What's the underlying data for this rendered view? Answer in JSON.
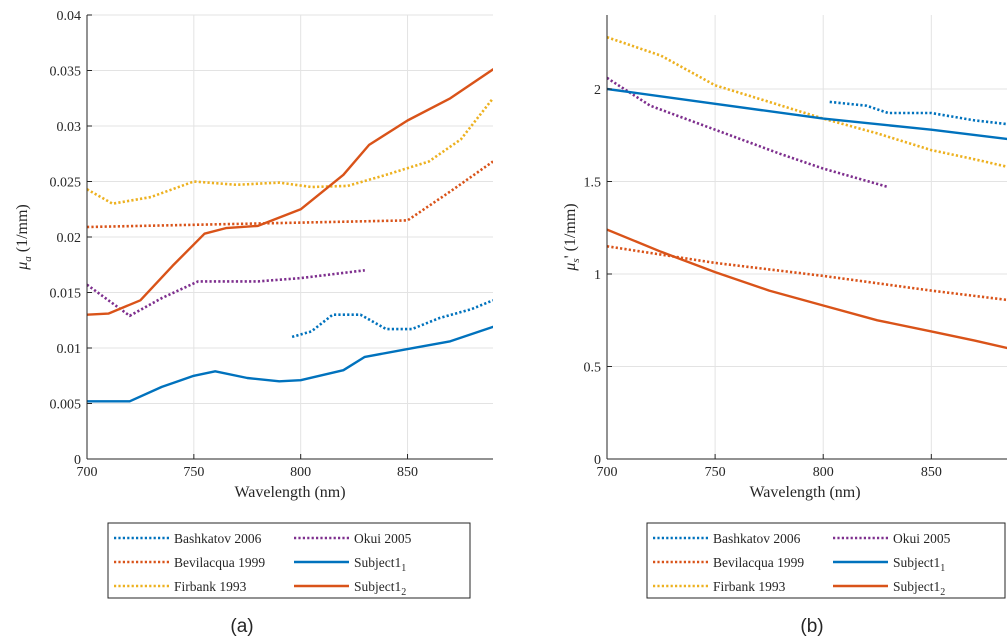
{
  "colors": {
    "blue": "#0072BD",
    "orange": "#D95319",
    "yellow": "#EDB120",
    "purple": "#7E2F8E"
  },
  "legend": {
    "items": [
      {
        "label": "Bashkatov 2006",
        "color": "#0072BD",
        "style": "dotted"
      },
      {
        "label": "Bevilacqua 1999",
        "color": "#D95319",
        "style": "dotted"
      },
      {
        "label": "Firbank 1993",
        "color": "#EDB120",
        "style": "dotted"
      },
      {
        "label": "Okui 2005",
        "color": "#7E2F8E",
        "style": "dotted"
      },
      {
        "label": "Subject1",
        "sub": "1",
        "color": "#0072BD",
        "style": "solid"
      },
      {
        "label": "Subject1",
        "sub": "2",
        "color": "#D95319",
        "style": "solid"
      }
    ]
  },
  "chart_data": [
    {
      "type": "line",
      "panel_label": "(a)",
      "xlabel": "Wavelength (nm)",
      "ylabel_main": "μ",
      "ylabel_sub": "a",
      "ylabel_unit": " (1/mm)",
      "xlim": [
        700,
        890
      ],
      "ylim": [
        0,
        0.04
      ],
      "xticks": [
        700,
        750,
        800,
        850
      ],
      "yticks": [
        0,
        0.005,
        0.01,
        0.015,
        0.02,
        0.025,
        0.03,
        0.035,
        0.04
      ],
      "ytick_labels": [
        "0",
        "0.005",
        "0.01",
        "0.015",
        "0.02",
        "0.025",
        "0.03",
        "0.035",
        "0.04"
      ],
      "grid": true,
      "series": [
        {
          "name": "Bashkatov 2006",
          "color": "#0072BD",
          "style": "dotted",
          "x": [
            796,
            805,
            815,
            828,
            840,
            852,
            865,
            880,
            890
          ],
          "y": [
            0.011,
            0.0115,
            0.013,
            0.013,
            0.0117,
            0.0117,
            0.0127,
            0.0135,
            0.0143
          ]
        },
        {
          "name": "Bevilacqua 1999",
          "color": "#D95319",
          "style": "dotted",
          "x": [
            700,
            750,
            800,
            850,
            870,
            890
          ],
          "y": [
            0.0209,
            0.0211,
            0.0213,
            0.0215,
            0.0241,
            0.0268
          ]
        },
        {
          "name": "Firbank 1993",
          "color": "#EDB120",
          "style": "dotted",
          "x": [
            700,
            712,
            730,
            750,
            770,
            790,
            805,
            822,
            840,
            860,
            875,
            890
          ],
          "y": [
            0.0243,
            0.023,
            0.0236,
            0.025,
            0.0247,
            0.0249,
            0.0245,
            0.0246,
            0.0256,
            0.0268,
            0.0288,
            0.0325
          ]
        },
        {
          "name": "Okui 2005",
          "color": "#7E2F8E",
          "style": "dotted",
          "x": [
            700,
            720,
            735,
            752,
            780,
            800,
            830
          ],
          "y": [
            0.0157,
            0.0129,
            0.0145,
            0.016,
            0.016,
            0.0163,
            0.017
          ]
        },
        {
          "name": "Subject1_1",
          "color": "#0072BD",
          "style": "solid",
          "x": [
            700,
            720,
            735,
            750,
            760,
            775,
            790,
            800,
            820,
            830,
            850,
            870,
            890
          ],
          "y": [
            0.0052,
            0.0052,
            0.0065,
            0.0075,
            0.0079,
            0.0073,
            0.007,
            0.0071,
            0.008,
            0.0092,
            0.0099,
            0.0106,
            0.0119
          ]
        },
        {
          "name": "Subject1_2",
          "color": "#D95319",
          "style": "solid",
          "x": [
            700,
            710,
            725,
            740,
            755,
            765,
            780,
            800,
            820,
            832,
            850,
            870,
            890
          ],
          "y": [
            0.013,
            0.0131,
            0.0143,
            0.0174,
            0.0203,
            0.0208,
            0.021,
            0.0225,
            0.0256,
            0.0283,
            0.0305,
            0.0325,
            0.0351
          ]
        }
      ]
    },
    {
      "type": "line",
      "panel_label": "(b)",
      "xlabel": "Wavelength (nm)",
      "ylabel_main": "μ",
      "ylabel_sub": "s",
      "ylabel_unit": "' (1/mm)",
      "xlim": [
        700,
        885
      ],
      "ylim": [
        0,
        2.4
      ],
      "xticks": [
        700,
        750,
        800,
        850
      ],
      "yticks": [
        0,
        0.5,
        1,
        1.5,
        2
      ],
      "ytick_labels": [
        "0",
        "0.5",
        "1",
        "1.5",
        "2"
      ],
      "grid": true,
      "series": [
        {
          "name": "Bashkatov 2006",
          "color": "#0072BD",
          "style": "dotted",
          "x": [
            803,
            820,
            830,
            850,
            870,
            885
          ],
          "y": [
            1.93,
            1.91,
            1.87,
            1.87,
            1.83,
            1.81
          ]
        },
        {
          "name": "Bevilacqua 1999",
          "color": "#D95319",
          "style": "dotted",
          "x": [
            700,
            750,
            800,
            850,
            885
          ],
          "y": [
            1.15,
            1.06,
            0.99,
            0.91,
            0.86
          ]
        },
        {
          "name": "Firbank 1993",
          "color": "#EDB120",
          "style": "dotted",
          "x": [
            700,
            725,
            750,
            775,
            800,
            825,
            850,
            870,
            885
          ],
          "y": [
            2.28,
            2.18,
            2.02,
            1.93,
            1.84,
            1.76,
            1.67,
            1.62,
            1.58
          ]
        },
        {
          "name": "Okui 2005",
          "color": "#7E2F8E",
          "style": "dotted",
          "x": [
            700,
            720,
            750,
            780,
            800,
            830
          ],
          "y": [
            2.06,
            1.91,
            1.78,
            1.65,
            1.57,
            1.47
          ]
        },
        {
          "name": "Subject1_1",
          "color": "#0072BD",
          "style": "solid",
          "x": [
            700,
            750,
            800,
            850,
            885
          ],
          "y": [
            2.0,
            1.92,
            1.84,
            1.78,
            1.73
          ]
        },
        {
          "name": "Subject1_2",
          "color": "#D95319",
          "style": "solid",
          "x": [
            700,
            725,
            750,
            775,
            800,
            825,
            850,
            870,
            885
          ],
          "y": [
            1.24,
            1.12,
            1.01,
            0.91,
            0.83,
            0.75,
            0.69,
            0.64,
            0.6
          ]
        }
      ]
    }
  ]
}
